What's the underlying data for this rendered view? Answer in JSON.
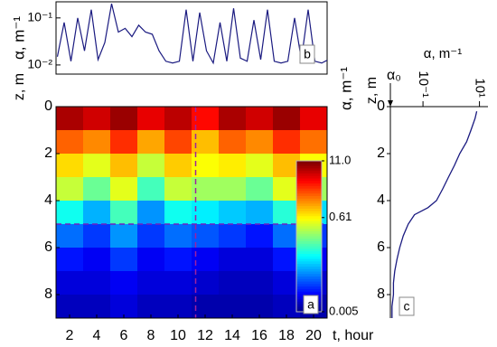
{
  "chart_data": [
    {
      "type": "line",
      "panel_label": "b",
      "y_label": "α, m⁻¹",
      "log_y": true,
      "x": [
        1.1,
        1.6,
        2.1,
        2.6,
        3.1,
        3.6,
        4.1,
        4.6,
        5.1,
        5.6,
        6.1,
        6.6,
        7.1,
        7.6,
        8.1,
        8.6,
        9.1,
        9.6,
        10.1,
        10.6,
        11.1,
        11.6,
        12.1,
        12.6,
        13.1,
        13.6,
        14.1,
        14.6,
        15.1,
        15.6,
        16.1,
        16.6,
        17.1,
        17.6,
        18.1,
        18.6,
        19.1,
        19.6,
        20.1,
        20.6,
        21.1
      ],
      "series": [
        {
          "color": "#1a1a80",
          "values": [
            0.015,
            0.08,
            0.012,
            0.1,
            0.02,
            0.15,
            0.013,
            0.03,
            0.2,
            0.05,
            0.06,
            0.04,
            0.07,
            0.05,
            0.045,
            0.02,
            0.012,
            0.011,
            0.012,
            0.15,
            0.012,
            0.13,
            0.02,
            0.011,
            0.08,
            0.012,
            0.16,
            0.014,
            0.012,
            0.09,
            0.013,
            0.15,
            0.012,
            0.011,
            0.012,
            0.1,
            0.013,
            0.15,
            0.012,
            0.011,
            0.013
          ]
        }
      ],
      "xlim": [
        1,
        21
      ],
      "ylim": [
        0.0064,
        0.22
      ],
      "yticks": [
        {
          "value": 0.1,
          "label": "10⁻¹"
        },
        {
          "value": 0.01,
          "label": "10⁻²"
        }
      ]
    },
    {
      "type": "heatmap",
      "panel_label": "a",
      "x_label": "t, hour",
      "y_label": "z, m",
      "colorbar_label": "α, m⁻¹",
      "x": [
        2,
        4,
        6,
        8,
        10,
        12,
        14,
        16,
        18,
        20
      ],
      "y": [
        0.5,
        1.5,
        2.5,
        3.5,
        4.5,
        5.5,
        6.5,
        7.5,
        8.5
      ],
      "values": [
        [
          8,
          6,
          9,
          5,
          7,
          4,
          8,
          6,
          9,
          5
        ],
        [
          2,
          1.5,
          3,
          1.2,
          2.5,
          1,
          2,
          1.5,
          3,
          1.8
        ],
        [
          0.8,
          0.5,
          1,
          0.4,
          0.9,
          0.6,
          0.7,
          0.5,
          1,
          0.6
        ],
        [
          0.4,
          0.2,
          0.5,
          0.15,
          0.4,
          0.3,
          0.3,
          0.2,
          0.5,
          0.3
        ],
        [
          0.1,
          0.05,
          0.15,
          0.04,
          0.1,
          0.08,
          0.06,
          0.05,
          0.12,
          0.07
        ],
        [
          0.03,
          0.02,
          0.04,
          0.02,
          0.03,
          0.025,
          0.02,
          0.015,
          0.03,
          0.02
        ],
        [
          0.015,
          0.012,
          0.02,
          0.012,
          0.015,
          0.012,
          0.01,
          0.01,
          0.015,
          0.012
        ],
        [
          0.01,
          0.01,
          0.012,
          0.01,
          0.01,
          0.009,
          0.008,
          0.008,
          0.01,
          0.009
        ],
        [
          0.008,
          0.008,
          0.01,
          0.008,
          0.008,
          0.007,
          0.007,
          0.007,
          0.008,
          0.007
        ]
      ],
      "xlim": [
        1,
        21
      ],
      "ylim": [
        0,
        9
      ],
      "xticks": [
        2,
        4,
        6,
        8,
        10,
        12,
        14,
        16,
        18,
        20
      ],
      "yticks": [
        0,
        2,
        4,
        6,
        8
      ],
      "colorbar_lim": [
        0.005,
        11
      ],
      "colorbar_ticks": [
        {
          "value": 11,
          "label": "11.0"
        },
        0.61,
        0.005
      ],
      "marker_t": 11.3,
      "marker_z": 5
    },
    {
      "type": "profile",
      "panel_label": "c",
      "x_label": "α, m⁻¹",
      "y_label": "z, m",
      "log_x": true,
      "alpha0_label": "α₀",
      "alpha0": 0.007,
      "depths": [
        0.2,
        0.5,
        1,
        1.5,
        2,
        2.5,
        3,
        3.5,
        4,
        4.3,
        4.6,
        5,
        5.5,
        6,
        6.5,
        7,
        7.5,
        8,
        8.5,
        9
      ],
      "values": [
        8,
        7,
        5,
        3.5,
        2,
        1.3,
        0.8,
        0.5,
        0.3,
        0.15,
        0.05,
        0.03,
        0.02,
        0.015,
        0.012,
        0.01,
        0.009,
        0.009,
        0.008,
        0.008
      ],
      "color": "#1a1a80",
      "xlim": [
        0.007,
        20
      ],
      "ylim": [
        0,
        9
      ],
      "xticks": [
        {
          "value": 0.1,
          "label": "10⁻¹"
        },
        {
          "value": 10,
          "label": "10¹"
        }
      ],
      "yticks": [
        0,
        2,
        4,
        6,
        8
      ]
    }
  ]
}
